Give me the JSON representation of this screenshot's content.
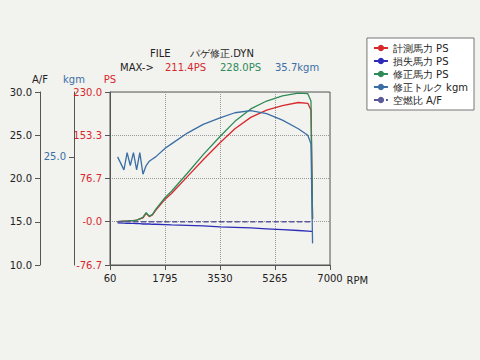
{
  "chart_data": {
    "type": "line",
    "header": {
      "file_label": "FILE",
      "file_name": "パゲ修正.DYN",
      "max_label": "MAX->",
      "max_values": [
        "211.4PS",
        "228.0PS",
        "35.7kgm"
      ]
    },
    "x_label": "RPM",
    "y_label": "PS",
    "y2_label": "kgm",
    "y3_label": "A/F",
    "x": [
      300,
      500,
      600,
      700,
      800,
      900,
      1000,
      1100,
      1200,
      1300,
      1400,
      1500,
      1800,
      2000,
      2500,
      3000,
      3530,
      4000,
      4500,
      5000,
      5500,
      6000,
      6300,
      6400,
      6450
    ],
    "series": [
      {
        "name": "計測馬力 PS",
        "color": "#d8282c",
        "line_style": "solid",
        "values": [
          0,
          1,
          1,
          2,
          2,
          3,
          5,
          7,
          15,
          9,
          12,
          20,
          40,
          50,
          80,
          110,
          140,
          165,
          185,
          198,
          206,
          211.4,
          210,
          198,
          5
        ]
      },
      {
        "name": "損失馬力 PS",
        "color": "#2c2cb8",
        "line_style": "solid",
        "values": [
          -2,
          -2.5,
          -3,
          -3,
          -3,
          -3.5,
          -3.5,
          -4,
          -4,
          -4,
          -4.5,
          -4.5,
          -5,
          -5.5,
          -6.5,
          -7.5,
          -9,
          -10,
          -11,
          -12.5,
          -14,
          -15.5,
          -16.5,
          -17,
          -17
        ]
      },
      {
        "name": "修正馬力 PS",
        "color": "#2e8b57",
        "line_style": "solid",
        "values": [
          0,
          1,
          1,
          2,
          2,
          3,
          5,
          8,
          16,
          10,
          13,
          22,
          43,
          54,
          86,
          119,
          151,
          178,
          200,
          214,
          223,
          228.0,
          227,
          214,
          5
        ]
      },
      {
        "name": "修正トルク kgm",
        "color": "#3a6ea5",
        "line_style": "solid",
        "axis": "y2",
        "values": [
          25,
          22,
          26,
          23,
          26,
          22,
          26,
          21,
          23,
          24,
          24.5,
          25,
          27,
          28,
          30.5,
          32.5,
          34,
          35.2,
          35.7,
          35,
          33.5,
          31.5,
          30,
          28,
          5
        ]
      },
      {
        "name": "空燃比 A/F",
        "color": "#5a5a9a",
        "line_style": "dashed",
        "axis": "y3",
        "values": [
          15,
          15,
          15,
          15,
          15,
          15,
          15,
          15,
          15,
          15,
          15,
          15,
          15,
          15,
          15,
          15,
          15,
          15,
          15,
          15,
          15,
          15,
          15,
          15,
          15
        ]
      }
    ],
    "xlim": [
      60,
      7000
    ],
    "xticks": [
      60,
      1795,
      3530,
      5265,
      7000
    ],
    "ylim": [
      -76.7,
      230
    ],
    "yticks": [
      -76.7,
      {
        "value": 0,
        "label": "-0.0"
      },
      76.7,
      153.3,
      {
        "value": 230,
        "label": "230.0"
      }
    ],
    "y2lim": [
      0,
      40
    ],
    "y2ticks": [
      {
        "value": 25,
        "label": "25.0"
      }
    ],
    "y3lim": [
      10,
      30
    ],
    "y3ticks": [
      {
        "value": 10,
        "label": "10.0"
      },
      {
        "value": 15,
        "label": "15.0"
      },
      {
        "value": 20,
        "label": "20.0"
      },
      {
        "value": 25,
        "label": "25.0"
      },
      {
        "value": 30,
        "label": "30.0"
      }
    ],
    "grid": true,
    "legend": "top-right"
  }
}
